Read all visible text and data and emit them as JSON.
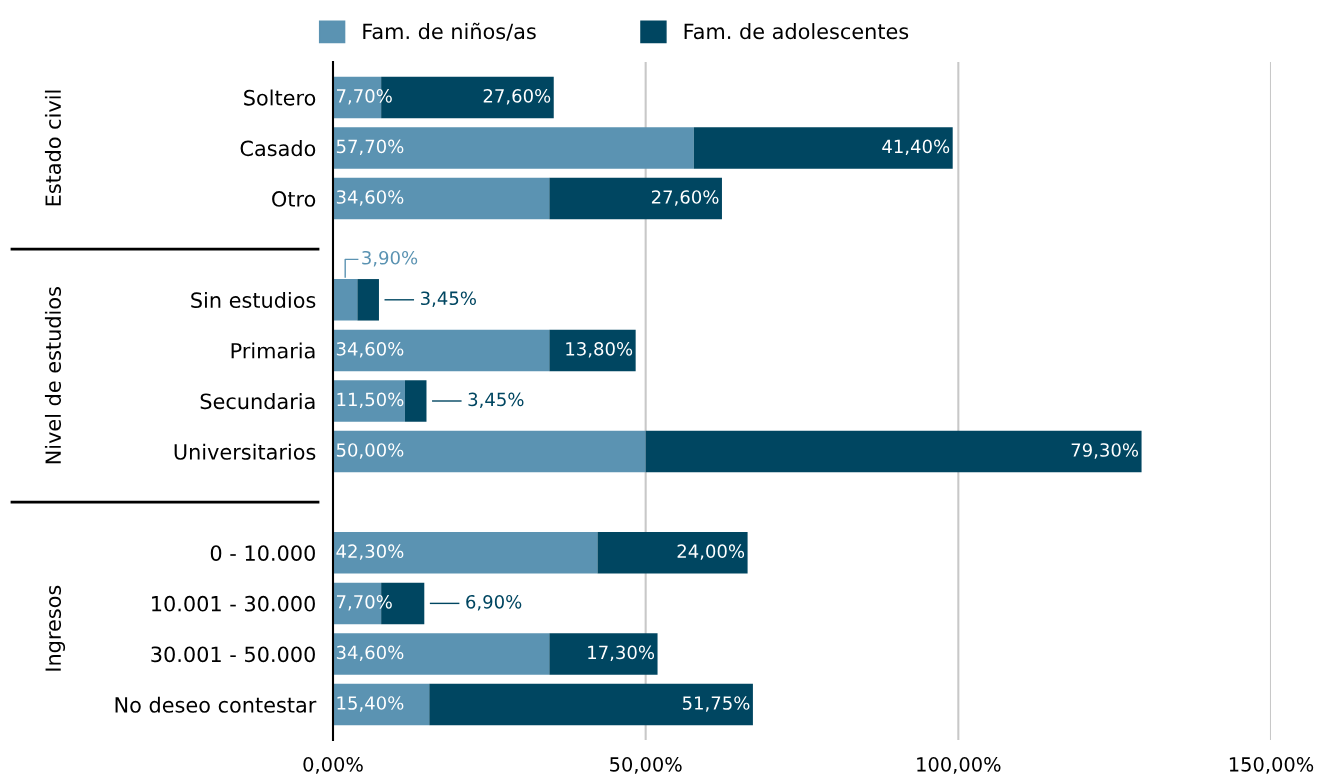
{
  "chart_data": {
    "type": "bar",
    "orientation": "horizontal",
    "stacked": true,
    "categories": [
      "Soltero",
      "Casado",
      "Otro",
      null,
      "Sin estudios",
      "Primaria",
      "Secundaria",
      "Universitarios",
      null,
      "0 - 10.000",
      "10.001 - 30.000",
      "30.001 - 50.000",
      "No deseo contestar"
    ],
    "series": [
      {
        "name": "Fam. de niños/as",
        "color": "#5b93b2",
        "values": [
          7.7,
          57.7,
          34.6,
          null,
          3.9,
          34.6,
          11.5,
          50.0,
          null,
          42.3,
          7.7,
          34.6,
          15.4
        ],
        "value_labels": [
          "7,70%",
          "57,70%",
          "34,60%",
          null,
          "3,90%",
          "34,60%",
          "11,50%",
          "50,00%",
          null,
          "42,30%",
          "7,70%",
          "34,60%",
          "15,40%"
        ]
      },
      {
        "name": "Fam. de adolescentes",
        "color": "#004661",
        "values": [
          27.6,
          41.4,
          27.6,
          null,
          3.45,
          13.8,
          3.45,
          79.3,
          null,
          24.0,
          6.9,
          17.3,
          51.75
        ],
        "value_labels": [
          "27,60%",
          "41,40%",
          "27,60%",
          null,
          "3,45%",
          "13,80%",
          "3,45%",
          "79,30%",
          null,
          "24,00%",
          "6,90%",
          "17,30%",
          "51,75%"
        ]
      }
    ],
    "annotations": [
      "Estado civil",
      "Nivel de estudios",
      "Ingresos"
    ],
    "xlim": [
      0,
      150
    ],
    "xticks": [
      {
        "value": 0,
        "label": "0,00%"
      },
      {
        "value": 50,
        "label": "50,00%"
      },
      {
        "value": 100,
        "label": "100,00%"
      },
      {
        "value": 150,
        "label": "150,00%"
      }
    ],
    "grid": "x",
    "legend": "top"
  }
}
